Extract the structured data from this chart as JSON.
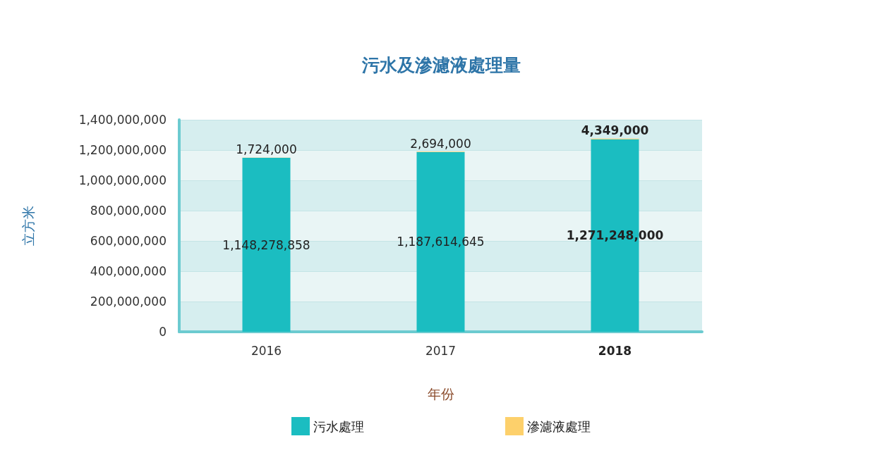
{
  "chart_data": {
    "type": "bar",
    "title": "污水及滲濾液處理量",
    "xlabel": "年份",
    "ylabel": "立方米",
    "categories": [
      "2016",
      "2017",
      "2018"
    ],
    "stacked": true,
    "series": [
      {
        "name": "污水處理",
        "color": "#1bbdc1",
        "values": [
          1148278858,
          1187614645,
          1271248000
        ],
        "value_labels": [
          "1,148,278,858",
          "1,187,614,645",
          "1,271,248,000"
        ]
      },
      {
        "name": "滲濾液處理",
        "color": "#fdd06b",
        "values": [
          1724000,
          2694000,
          4349000
        ],
        "value_labels": [
          "1,724,000",
          "2,694,000",
          "4,349,000"
        ]
      }
    ],
    "ylim": [
      0,
      1400000000
    ],
    "yticks": [
      0,
      {
        "value": 200000000,
        "label": "200,000,000"
      },
      {
        "value": 400000000,
        "label": "400,000,000"
      },
      {
        "value": 600000000,
        "label": "600,000,000"
      },
      {
        "value": 800000000,
        "label": "800,000,000"
      },
      {
        "value": 1000000000,
        "label": "1,000,000,000"
      },
      {
        "value": 1200000000,
        "label": "1,200,000,000"
      },
      {
        "value": 1400000000,
        "label": "1,400,000,000"
      }
    ],
    "grid": "y",
    "legend": "bottom"
  }
}
